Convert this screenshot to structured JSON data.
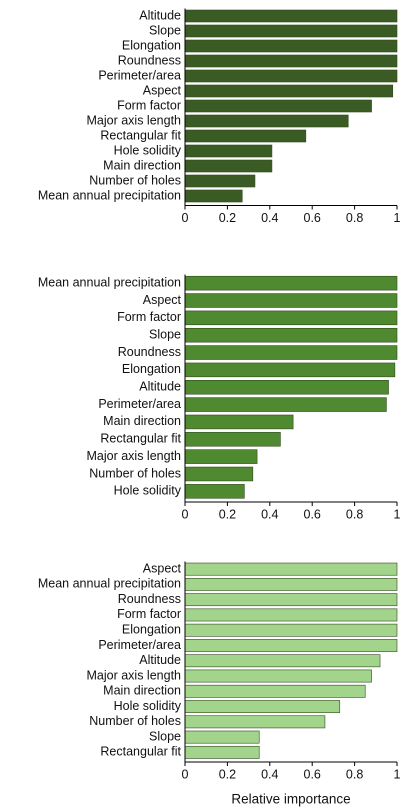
{
  "chart_data": [
    {
      "type": "barh",
      "color": "#3b5b24",
      "categories": [
        "Altitude",
        "Slope",
        "Elongation",
        "Roundness",
        "Perimeter/area",
        "Aspect",
        "Form factor",
        "Major axis length",
        "Rectangular fit",
        "Hole solidity",
        "Main direction",
        "Number of holes",
        "Mean annual precipitation"
      ],
      "values": [
        1,
        1,
        1,
        1,
        1,
        0.98,
        0.88,
        0.77,
        0.57,
        0.41,
        0.41,
        0.33,
        0.27
      ],
      "xlim": [
        0,
        1
      ],
      "xticks": [
        0,
        0.2,
        0.4,
        0.6,
        0.8,
        1
      ]
    },
    {
      "type": "barh",
      "color": "#4f8a31",
      "categories": [
        "Mean annual precipitation",
        "Aspect",
        "Form factor",
        "Slope",
        "Roundness",
        "Elongation",
        "Altitude",
        "Perimeter/area",
        "Main direction",
        "Rectangular fit",
        "Major axis length",
        "Number of holes",
        "Hole solidity"
      ],
      "values": [
        1,
        1,
        1,
        1,
        1,
        0.99,
        0.96,
        0.95,
        0.51,
        0.45,
        0.34,
        0.32,
        0.28
      ],
      "xlim": [
        0,
        1
      ],
      "xticks": [
        0,
        0.2,
        0.4,
        0.6,
        0.8,
        1
      ]
    },
    {
      "type": "barh",
      "color": "#a3d48b",
      "categories": [
        "Aspect",
        "Mean annual precipitation",
        "Roundness",
        "Form factor",
        "Elongation",
        "Perimeter/area",
        "Altitude",
        "Major axis length",
        "Main direction",
        "Hole solidity",
        "Number of holes",
        "Slope",
        "Rectangular fit"
      ],
      "values": [
        1,
        1,
        1,
        1,
        1,
        1,
        0.92,
        0.88,
        0.85,
        0.73,
        0.66,
        0.35,
        0.35
      ],
      "xlim": [
        0,
        1
      ],
      "xticks": [
        0,
        0.2,
        0.4,
        0.6,
        0.8,
        1
      ],
      "xlabel": "Relative importance"
    }
  ]
}
